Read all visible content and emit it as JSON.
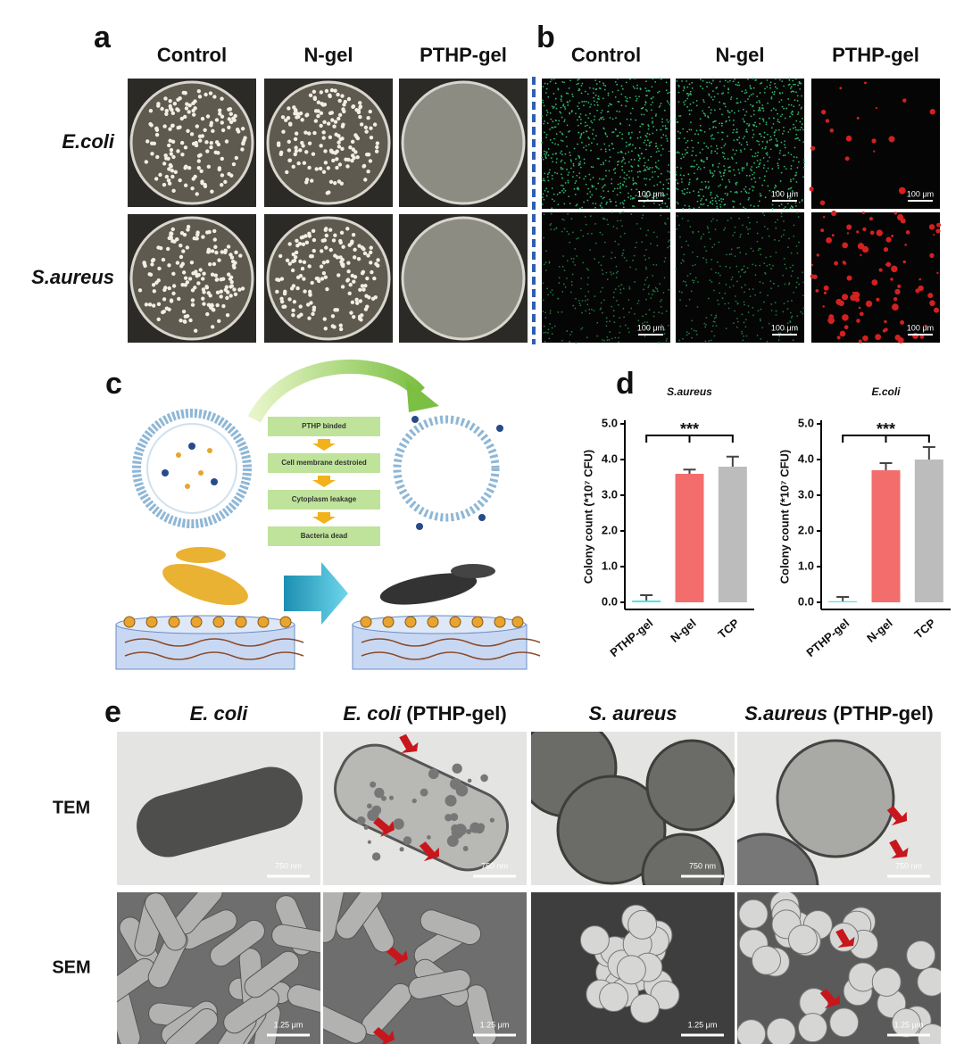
{
  "figure": {
    "a": {
      "label": "a",
      "columns": [
        "Control",
        "N-gel",
        "PTHP-gel"
      ],
      "rows": [
        "E.coli",
        "S.aureus"
      ]
    },
    "b": {
      "label": "b",
      "columns": [
        "Control",
        "N-gel",
        "PTHP-gel"
      ],
      "scale_bars": [
        [
          "100 μm",
          "100 μm",
          "100 μm"
        ],
        [
          "100 μm",
          "100 μm",
          "100 μm"
        ]
      ]
    },
    "c": {
      "label": "c",
      "steps": [
        "PTHP binded",
        "Cell membrane destroied",
        "Cytoplasm leakage",
        "Bacteria dead"
      ]
    },
    "d": {
      "label": "d"
    },
    "e": {
      "label": "e",
      "columns": [
        {
          "species": "E. coli"
        },
        {
          "species": "E. coli",
          "condition": "(PTHP-gel)"
        },
        {
          "species": "S. aureus"
        },
        {
          "species": "S.aureus",
          "condition": "(PTHP-gel)"
        }
      ],
      "rows": [
        "TEM",
        "SEM"
      ],
      "scale_bars": [
        [
          "750 nm",
          "750 nm",
          "750 nm",
          "750 nm"
        ],
        [
          "1.25 μm",
          "1.25 μm",
          "1.25 μm",
          "1.25 μm"
        ]
      ]
    }
  },
  "chart_data": [
    {
      "type": "bar",
      "title": "S.aureus",
      "ylabel": "Colony count (*10⁷ CFU)",
      "categories": [
        "PTHP-gel",
        "N-gel",
        "TCP"
      ],
      "values": [
        0.05,
        3.6,
        3.8
      ],
      "errors": [
        0.15,
        0.12,
        0.28
      ],
      "colors": [
        "#4fe3e3",
        "#f46d6d",
        "#bcbcbc"
      ],
      "ylim": [
        -0.2,
        5.0
      ],
      "yticks": [
        {
          "value": 0,
          "label": "0.0"
        },
        {
          "value": 1,
          "label": "1.0"
        },
        {
          "value": 2,
          "label": "2.0"
        },
        {
          "value": 3,
          "label": "3.0"
        },
        {
          "value": 4,
          "label": "4.0"
        },
        {
          "value": 5,
          "label": "5.0"
        }
      ],
      "significance": "***"
    },
    {
      "type": "bar",
      "title": "E.coli",
      "ylabel": "Colony count (*10⁷ CFU)",
      "categories": [
        "PTHP-gel",
        "N-gel",
        "TCP"
      ],
      "values": [
        0.03,
        3.7,
        4.0
      ],
      "errors": [
        0.12,
        0.2,
        0.35
      ],
      "colors": [
        "#4fe3e3",
        "#f46d6d",
        "#bcbcbc"
      ],
      "ylim": [
        -0.2,
        5.0
      ],
      "yticks": [
        {
          "value": 0,
          "label": "0.0"
        },
        {
          "value": 1,
          "label": "1.0"
        },
        {
          "value": 2,
          "label": "2.0"
        },
        {
          "value": 3,
          "label": "3.0"
        },
        {
          "value": 4,
          "label": "4.0"
        },
        {
          "value": 5,
          "label": "5.0"
        }
      ],
      "significance": "***"
    }
  ]
}
